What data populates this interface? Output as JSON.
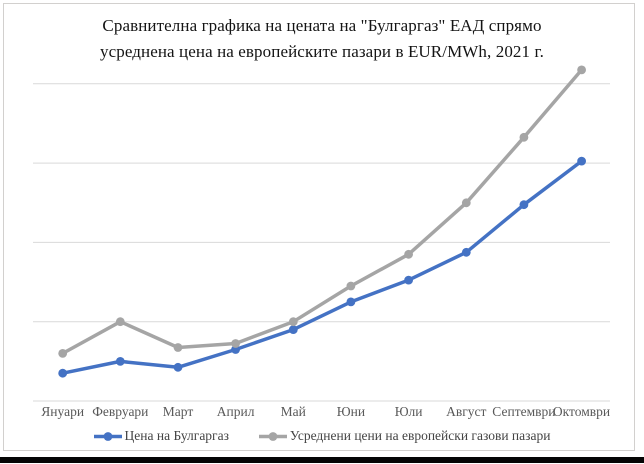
{
  "window": {
    "background_color": "#ffffff",
    "frame_border_color": "#d2d0ce",
    "bottom_bar_color": "#050505"
  },
  "chart_data": {
    "type": "line",
    "title_lines": [
      "Сравнителна графика на цената на \"Булгаргаз\" ЕАД спрямо",
      "усреднена цена на европейските пазари в EUR/MWh, 2021 г."
    ],
    "title": "Сравнителна графика на цената на \"Булгаргаз\" ЕАД спрямо усреднена цена на европейските пазари в EUR/MWh, 2021 г.",
    "categories": [
      "Януари",
      "Февруари",
      "Март",
      "Април",
      "Май",
      "Юни",
      "Юли",
      "Август",
      "Септември",
      "Октомври"
    ],
    "series": [
      {
        "name": "Цена на Булгаргаз",
        "color": "#4472C4",
        "values": [
          7,
          10,
          8.5,
          13,
          18,
          25,
          30.5,
          37.5,
          49.5,
          60.5
        ]
      },
      {
        "name": "Усреднени цени на европейски газови пазари",
        "color": "#A5A5A5",
        "values": [
          12,
          20,
          13.5,
          14.5,
          20,
          29,
          37,
          50,
          66.5,
          83.5
        ]
      }
    ],
    "xlabel": "",
    "ylabel": "",
    "ylim": [
      0,
      90
    ],
    "y_axis_tick_labels_visible": false,
    "note": "No y-axis tick labels shown; values estimated from unlabeled gridlines (assumed 20 EUR/MWh per gridline interval)",
    "grid": {
      "horizontal": true,
      "step": 20,
      "max_line": 80,
      "color": "#D9D9D9"
    },
    "axis_line_color": "#D9D9D9",
    "axis_label_color": "#595959",
    "legend_position": "bottom",
    "marker": "circle"
  }
}
